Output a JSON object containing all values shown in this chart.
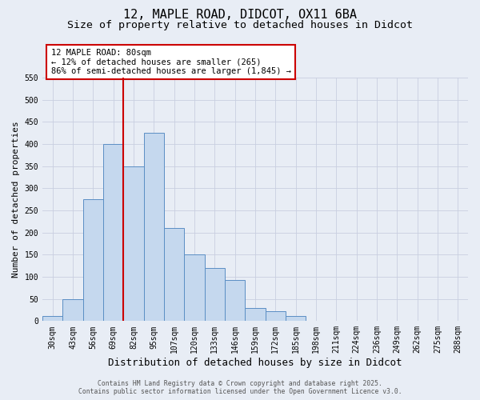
{
  "title": "12, MAPLE ROAD, DIDCOT, OX11 6BA",
  "subtitle": "Size of property relative to detached houses in Didcot",
  "xlabel": "Distribution of detached houses by size in Didcot",
  "ylabel": "Number of detached properties",
  "categories": [
    "30sqm",
    "43sqm",
    "56sqm",
    "69sqm",
    "82sqm",
    "95sqm",
    "107sqm",
    "120sqm",
    "133sqm",
    "146sqm",
    "159sqm",
    "172sqm",
    "185sqm",
    "198sqm",
    "211sqm",
    "224sqm",
    "236sqm",
    "249sqm",
    "262sqm",
    "275sqm",
    "288sqm"
  ],
  "values": [
    12,
    50,
    275,
    400,
    350,
    425,
    210,
    150,
    120,
    93,
    30,
    22,
    12,
    0,
    0,
    0,
    0,
    0,
    0,
    0,
    0
  ],
  "bar_color": "#c5d8ee",
  "bar_edge_color": "#5b8ec4",
  "vline_index": 4,
  "vline_color": "#cc0000",
  "annotation_title": "12 MAPLE ROAD: 80sqm",
  "annotation_line1": "← 12% of detached houses are smaller (265)",
  "annotation_line2": "86% of semi-detached houses are larger (1,845) →",
  "annotation_box_color": "#ffffff",
  "annotation_box_edge": "#cc0000",
  "ylim": [
    0,
    550
  ],
  "yticks": [
    0,
    50,
    100,
    150,
    200,
    250,
    300,
    350,
    400,
    450,
    500,
    550
  ],
  "background_color": "#e8edf5",
  "grid_color": "#c8cfe0",
  "footer1": "Contains HM Land Registry data © Crown copyright and database right 2025.",
  "footer2": "Contains public sector information licensed under the Open Government Licence v3.0.",
  "title_fontsize": 11,
  "subtitle_fontsize": 9.5,
  "xlabel_fontsize": 9,
  "ylabel_fontsize": 8,
  "tick_fontsize": 7,
  "annotation_fontsize": 7.5,
  "footer_fontsize": 5.8
}
